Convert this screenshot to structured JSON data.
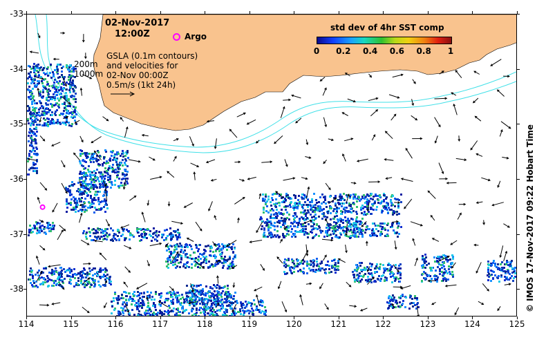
{
  "title": {
    "date": "02-Nov-2017",
    "time": "12:00Z"
  },
  "argo_legend": {
    "label": "Argo",
    "marker_color": "#ff00ff"
  },
  "colorbar": {
    "title": "std dev of 4hr SST comp",
    "ticks": [
      "0",
      "0.2",
      "0.4",
      "0.6",
      "0.8",
      "1"
    ],
    "range": [
      0,
      1
    ]
  },
  "gsla": {
    "lines": [
      "GSLA (0.1m contours)",
      "and velocities for",
      "02-Nov 00:00Z",
      "0.5m/s (1kt 24h)"
    ]
  },
  "contour_labels": {
    "c200": "200m",
    "c1000": "1000m"
  },
  "credit": "©  IMOS 17-Nov-2017 09:22 Hobart Time",
  "axes": {
    "lon_ticks": [
      "114",
      "115",
      "116",
      "117",
      "118",
      "119",
      "120",
      "121",
      "122",
      "123",
      "124",
      "125"
    ],
    "lat_ticks": [
      "-33",
      "-34",
      "-35",
      "-36",
      "-37",
      "-38"
    ],
    "lon_range": [
      114,
      125
    ],
    "lat_range": [
      -38.5,
      -33
    ]
  },
  "colors": {
    "land": "#f9c38e",
    "bathymetry_contour": "#3fe0e8",
    "argo": "#ff00ff",
    "arrow": "#000000"
  },
  "argo_floats": [
    {
      "lon": 114.35,
      "lat": -36.5
    }
  ]
}
